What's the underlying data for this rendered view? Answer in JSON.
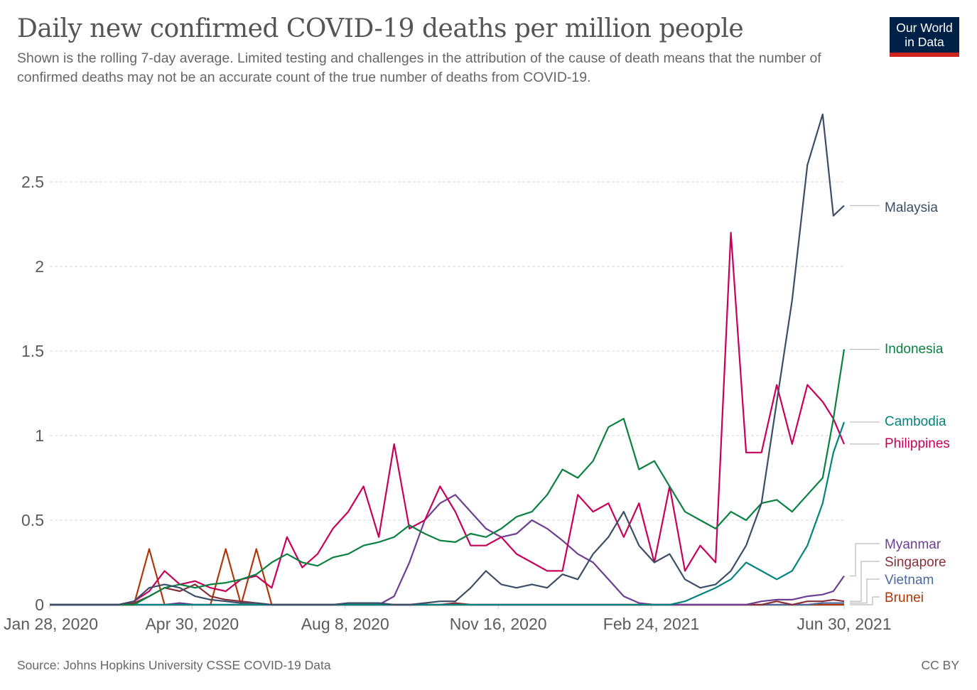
{
  "header": {
    "title": "Daily new confirmed COVID-19 deaths per million people",
    "subtitle": "Shown is the rolling 7-day average. Limited testing and challenges in the attribution of the cause of death means that the number of confirmed deaths may not be an accurate count of the true number of deaths from COVID-19.",
    "logo_line1": "Our World",
    "logo_line2": "in Data"
  },
  "footer": {
    "source": "Source: Johns Hopkins University CSSE COVID-19 Data",
    "license": "CC BY"
  },
  "chart_data": {
    "type": "line",
    "title": "Daily new confirmed COVID-19 deaths per million people",
    "xlabel": "",
    "ylabel": "",
    "x_unit": "days since Jan 28, 2020",
    "xlim": [
      0,
      519
    ],
    "ylim": [
      0,
      2.95
    ],
    "grid": true,
    "y_ticks": [
      0,
      0.5,
      1,
      1.5,
      2,
      2.5
    ],
    "y_tick_labels": [
      "0",
      "0.5",
      "1",
      "1.5",
      "2",
      "2.5"
    ],
    "x_ticks": [
      0,
      93,
      193,
      293,
      393,
      519
    ],
    "x_tick_labels": [
      "Jan 28, 2020",
      "Apr 30, 2020",
      "Aug 8, 2020",
      "Nov 16, 2020",
      "Feb 24, 2021",
      "Jun 30, 2021"
    ],
    "legend_placement": "right (end-of-line labels)",
    "x": [
      0,
      45,
      55,
      65,
      75,
      85,
      95,
      105,
      115,
      125,
      135,
      145,
      155,
      165,
      175,
      185,
      195,
      205,
      215,
      225,
      235,
      245,
      255,
      265,
      275,
      285,
      295,
      305,
      315,
      325,
      335,
      345,
      355,
      365,
      375,
      385,
      395,
      405,
      415,
      425,
      435,
      445,
      455,
      465,
      475,
      485,
      495,
      505,
      512,
      519
    ],
    "series": [
      {
        "name": "Malaysia",
        "color": "#3c4e66",
        "end_value": 2.36,
        "values": [
          0,
          0,
          0.02,
          0.1,
          0.12,
          0.1,
          0.05,
          0.03,
          0.02,
          0.01,
          0.01,
          0,
          0,
          0,
          0,
          0,
          0.01,
          0.01,
          0.01,
          0,
          0,
          0.01,
          0.02,
          0.02,
          0.1,
          0.2,
          0.12,
          0.1,
          0.12,
          0.1,
          0.18,
          0.15,
          0.3,
          0.4,
          0.55,
          0.35,
          0.25,
          0.3,
          0.15,
          0.1,
          0.12,
          0.2,
          0.35,
          0.6,
          1.2,
          1.8,
          2.6,
          2.9,
          2.3,
          2.36
        ]
      },
      {
        "name": "Indonesia",
        "color": "#00847e",
        "end_value": 1.51,
        "display_color": "#0a8041",
        "values": [
          0,
          0,
          0,
          0.05,
          0.1,
          0.12,
          0.1,
          0.12,
          0.13,
          0.15,
          0.18,
          0.25,
          0.3,
          0.25,
          0.23,
          0.28,
          0.3,
          0.35,
          0.37,
          0.4,
          0.47,
          0.42,
          0.38,
          0.37,
          0.42,
          0.4,
          0.45,
          0.52,
          0.55,
          0.65,
          0.8,
          0.75,
          0.85,
          1.05,
          1.1,
          0.8,
          0.85,
          0.7,
          0.55,
          0.5,
          0.45,
          0.55,
          0.5,
          0.6,
          0.62,
          0.55,
          0.65,
          0.75,
          1.1,
          1.51
        ]
      },
      {
        "name": "Cambodia",
        "color": "#00847e",
        "end_value": 1.08,
        "values": [
          0,
          0,
          0,
          0,
          0,
          0,
          0,
          0,
          0,
          0,
          0,
          0,
          0,
          0,
          0,
          0,
          0,
          0,
          0,
          0,
          0,
          0,
          0,
          0,
          0,
          0,
          0,
          0,
          0,
          0,
          0,
          0,
          0,
          0,
          0,
          0,
          0,
          0,
          0.02,
          0.06,
          0.1,
          0.15,
          0.25,
          0.2,
          0.15,
          0.2,
          0.35,
          0.6,
          0.9,
          1.08
        ]
      },
      {
        "name": "Philippines",
        "color": "#c8005a",
        "end_value": 0.95,
        "values": [
          0,
          0,
          0.02,
          0.08,
          0.2,
          0.12,
          0.14,
          0.1,
          0.08,
          0.15,
          0.17,
          0.1,
          0.4,
          0.22,
          0.3,
          0.45,
          0.55,
          0.7,
          0.4,
          0.95,
          0.45,
          0.5,
          0.7,
          0.55,
          0.35,
          0.35,
          0.4,
          0.3,
          0.25,
          0.2,
          0.2,
          0.65,
          0.55,
          0.6,
          0.4,
          0.6,
          0.25,
          0.7,
          0.2,
          0.35,
          0.25,
          2.2,
          0.9,
          0.9,
          1.3,
          0.95,
          1.3,
          1.2,
          1.1,
          0.95
        ]
      },
      {
        "name": "Myanmar",
        "color": "#6d3e91",
        "end_value": 0.17,
        "values": [
          0,
          0,
          0,
          0,
          0,
          0.01,
          0,
          0,
          0,
          0,
          0,
          0,
          0,
          0,
          0,
          0,
          0,
          0,
          0,
          0.05,
          0.25,
          0.5,
          0.6,
          0.65,
          0.55,
          0.45,
          0.4,
          0.42,
          0.5,
          0.45,
          0.38,
          0.3,
          0.25,
          0.15,
          0.05,
          0.01,
          0,
          0,
          0,
          0,
          0,
          0,
          0,
          0.02,
          0.03,
          0.03,
          0.05,
          0.06,
          0.08,
          0.17
        ]
      },
      {
        "name": "Singapore",
        "color": "#883039",
        "end_value": 0.02,
        "values": [
          0,
          0,
          0.01,
          0.05,
          0.1,
          0.08,
          0.12,
          0.05,
          0.03,
          0.02,
          0.01,
          0,
          0,
          0,
          0,
          0,
          0,
          0,
          0,
          0,
          0,
          0,
          0,
          0.01,
          0,
          0,
          0,
          0,
          0,
          0,
          0,
          0,
          0,
          0,
          0,
          0,
          0,
          0,
          0,
          0,
          0,
          0,
          0,
          0,
          0.02,
          0,
          0.02,
          0.02,
          0.03,
          0.02
        ]
      },
      {
        "name": "Vietnam",
        "color": "#4c6a9c",
        "end_value": 0.01,
        "values": [
          0,
          0,
          0,
          0,
          0,
          0,
          0,
          0,
          0,
          0,
          0,
          0,
          0,
          0,
          0,
          0,
          0,
          0,
          0,
          0,
          0,
          0,
          0,
          0,
          0,
          0,
          0,
          0,
          0,
          0,
          0,
          0,
          0,
          0,
          0,
          0,
          0,
          0,
          0,
          0,
          0,
          0,
          0,
          0,
          0,
          0,
          0,
          0.01,
          0.01,
          0.01
        ]
      },
      {
        "name": "Brunei",
        "color": "#b13507",
        "end_value": 0.0,
        "values": [
          0,
          0,
          0,
          0.33,
          0,
          0,
          0,
          0,
          0.33,
          0,
          0.33,
          0,
          0,
          0,
          0,
          0,
          0,
          0,
          0,
          0,
          0,
          0,
          0,
          0,
          0,
          0,
          0,
          0,
          0,
          0,
          0,
          0,
          0,
          0,
          0,
          0,
          0,
          0,
          0,
          0,
          0,
          0,
          0,
          0,
          0,
          0,
          0,
          0,
          0,
          0
        ]
      }
    ]
  }
}
